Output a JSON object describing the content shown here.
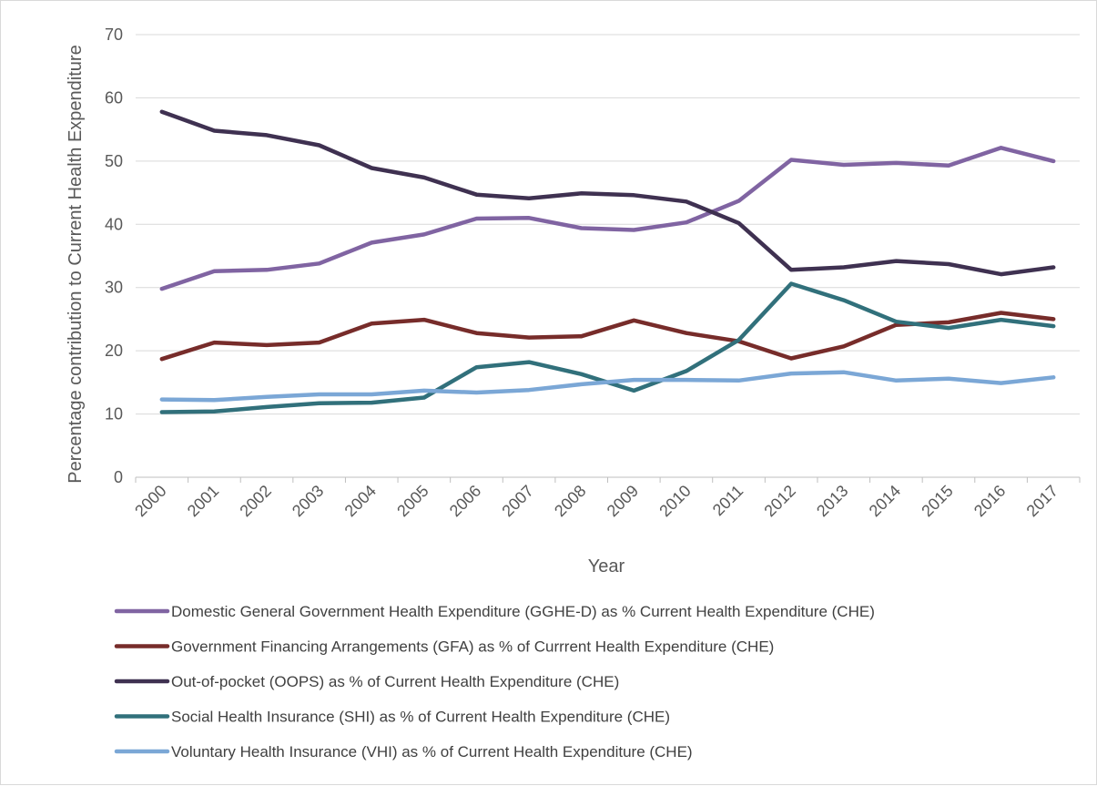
{
  "chart_data": {
    "type": "line",
    "title": "",
    "xlabel": "Year",
    "ylabel": "Percentage contribution to Current Health Expenditure",
    "ylim": [
      0,
      70
    ],
    "yticks": [
      0,
      10,
      20,
      30,
      40,
      50,
      60,
      70
    ],
    "grid": true,
    "legend_position": "bottom",
    "categories": [
      "2000",
      "2001",
      "2002",
      "2003",
      "2004",
      "2005",
      "2006",
      "2007",
      "2008",
      "2009",
      "2010",
      "2011",
      "2012",
      "2013",
      "2014",
      "2015",
      "2016",
      "2017"
    ],
    "series": [
      {
        "name": "Domestic General Government Health Expenditure (GGHE-D) as % Current Health Expenditure (CHE)",
        "color": "#8064a2",
        "values": [
          29.8,
          32.6,
          32.8,
          33.8,
          37.1,
          38.4,
          40.9,
          41.0,
          39.4,
          39.1,
          40.3,
          43.7,
          50.2,
          49.4,
          49.7,
          49.3,
          52.1,
          50.0
        ]
      },
      {
        "name": "Government Financing Arrangements (GFA) as % of Currrent Health Expenditure (CHE)",
        "color": "#772c2a",
        "values": [
          18.7,
          21.3,
          20.9,
          21.3,
          24.3,
          24.9,
          22.8,
          22.1,
          22.3,
          24.8,
          22.8,
          21.5,
          18.8,
          20.7,
          24.1,
          24.5,
          26.0,
          25.0
        ]
      },
      {
        "name": "Out-of-pocket (OOPS) as % of Current Health Expenditure (CHE)",
        "color": "#3f3151",
        "values": [
          57.8,
          54.8,
          54.1,
          52.5,
          48.9,
          47.4,
          44.7,
          44.1,
          44.9,
          44.6,
          43.6,
          40.2,
          32.8,
          33.2,
          34.2,
          33.7,
          32.1,
          33.2
        ]
      },
      {
        "name": "Social Health Insurance (SHI) as % of Current Health Expenditure (CHE)",
        "color": "#31707b",
        "values": [
          10.3,
          10.4,
          11.1,
          11.7,
          11.8,
          12.6,
          17.4,
          18.2,
          16.3,
          13.7,
          16.8,
          21.7,
          30.6,
          28.0,
          24.6,
          23.6,
          24.9,
          23.9
        ]
      },
      {
        "name": "Voluntary Health Insurance (VHI) as % of Current Health Expenditure (CHE)",
        "color": "#7ba7d6",
        "values": [
          12.3,
          12.2,
          12.7,
          13.1,
          13.1,
          13.7,
          13.4,
          13.8,
          14.7,
          15.4,
          15.4,
          15.3,
          16.4,
          16.6,
          15.3,
          15.6,
          14.9,
          15.8
        ]
      }
    ]
  }
}
